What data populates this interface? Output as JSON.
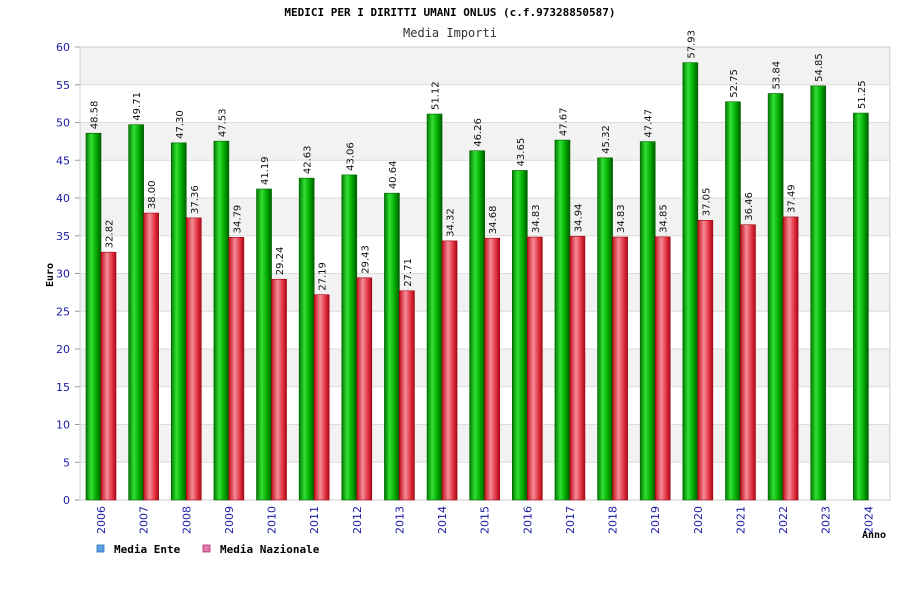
{
  "chart_data": {
    "type": "bar",
    "title": "MEDICI PER I DIRITTI UMANI ONLUS (c.f.97328850587)",
    "subtitle": "Media Importi",
    "ylabel": "Euro",
    "xlabel": "Anno",
    "ylim": [
      0,
      60
    ],
    "ytick_step": 5,
    "categories": [
      "2006",
      "2007",
      "2008",
      "2009",
      "2010",
      "2011",
      "2012",
      "2013",
      "2014",
      "2015",
      "2016",
      "2017",
      "2018",
      "2019",
      "2020",
      "2021",
      "2022",
      "2023",
      "2024"
    ],
    "series": [
      {
        "name": "Media Ente",
        "color": "#00a000",
        "values": [
          48.58,
          49.71,
          47.3,
          47.53,
          41.19,
          42.63,
          43.06,
          40.64,
          51.12,
          46.26,
          43.65,
          47.67,
          45.32,
          47.47,
          57.93,
          52.75,
          53.84,
          54.85,
          51.25
        ],
        "labels": [
          "48.58",
          "49.71",
          "47.30",
          "47.53",
          "41.19",
          "42.63",
          "43.06",
          "40.64",
          "51.12",
          "46.26",
          "43.65",
          "47.67",
          "45.32",
          "47.47",
          "57.93",
          "52.75",
          "53.84",
          "54.85",
          "51.25"
        ]
      },
      {
        "name": "Media Nazionale",
        "color": "#e02030",
        "values": [
          32.82,
          38.0,
          37.36,
          34.79,
          29.24,
          27.19,
          29.43,
          27.71,
          34.32,
          34.68,
          34.83,
          34.94,
          34.83,
          34.85,
          37.05,
          36.46,
          37.49,
          null,
          null
        ],
        "labels": [
          "32.82",
          "38.00",
          "37.36",
          "34.79",
          "29.24",
          "27.19",
          "29.43",
          "27.71",
          "34.32",
          "34.68",
          "34.83",
          "34.94",
          "34.83",
          "34.85",
          "37.05",
          "36.46",
          "37.49",
          null,
          null
        ]
      }
    ],
    "legend": [
      {
        "label": "Media Ente",
        "color": "#5aa0e6"
      },
      {
        "label": "Media Nazionale",
        "color": "#e07aa8"
      }
    ],
    "legend_position": "bottom-left",
    "grid": true
  }
}
